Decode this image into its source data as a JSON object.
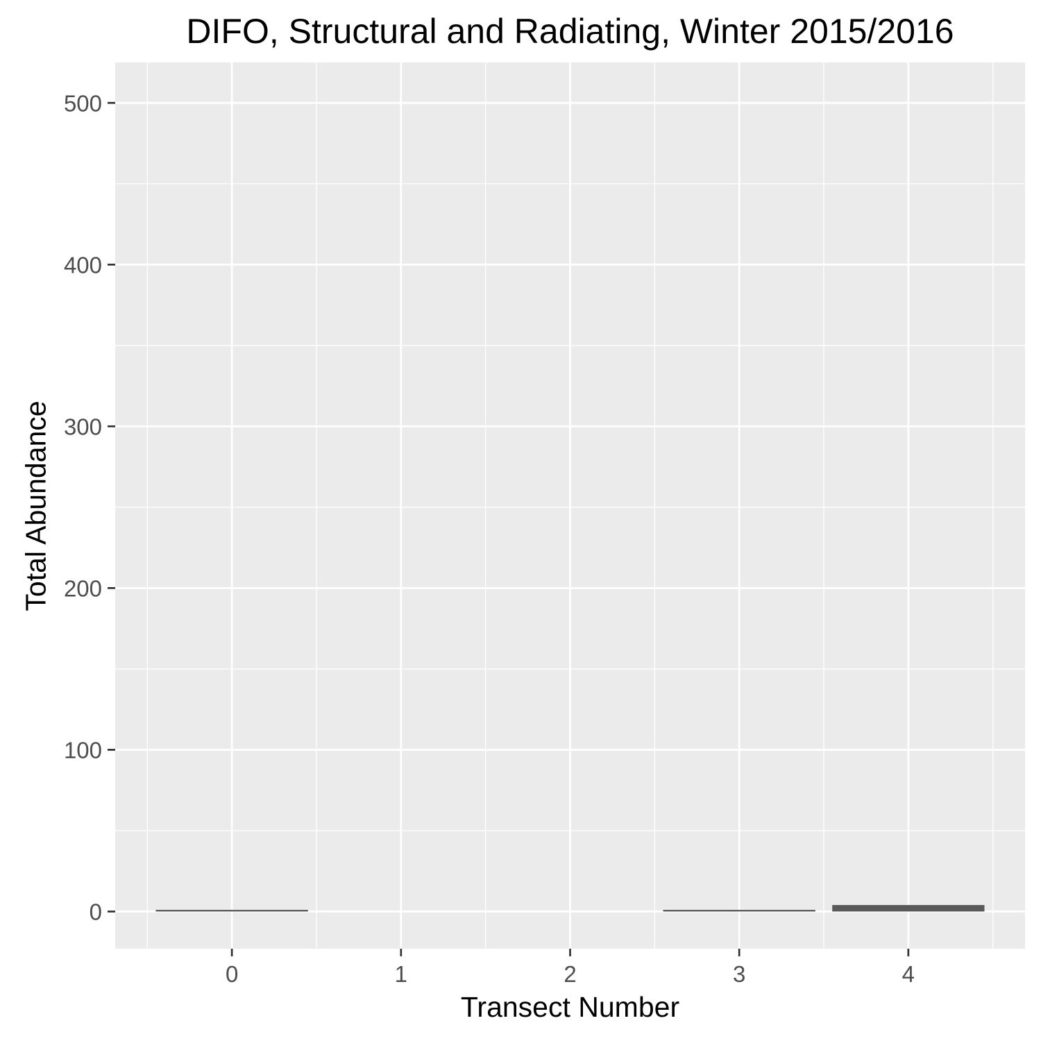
{
  "chart_data": {
    "type": "bar",
    "title": "DIFO, Structural and Radiating, Winter 2015/2016",
    "xlabel": "Transect Number",
    "ylabel": "Total Abundance",
    "categories": [
      "0",
      "1",
      "2",
      "3",
      "4"
    ],
    "values": [
      1,
      0,
      0,
      1,
      4
    ],
    "ylim": [
      -23,
      525
    ],
    "yticks": [
      0,
      100,
      200,
      300,
      400,
      500
    ],
    "yticks_minor": [
      50,
      150,
      250,
      350,
      450
    ],
    "grid": true,
    "colors": {
      "panel": "#ebebeb",
      "grid": "#ffffff",
      "bar": "#595959",
      "tick": "#333333",
      "tick_label": "#4d4d4d"
    }
  }
}
